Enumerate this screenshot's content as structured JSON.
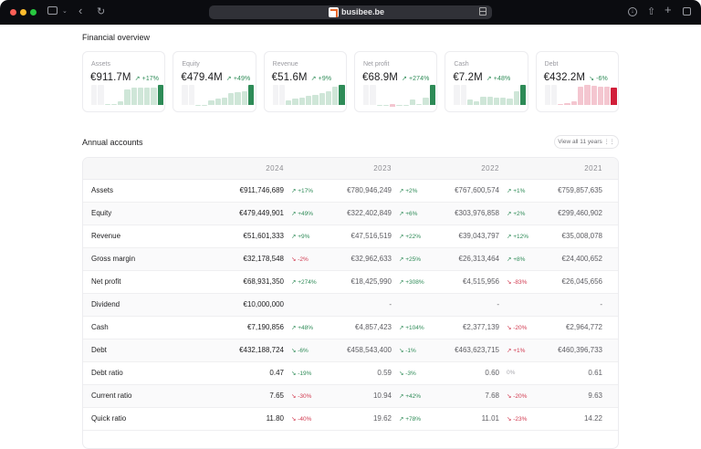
{
  "browser": {
    "url": "busibee.be",
    "icons": [
      "sidebar-icon",
      "chevron-down-icon",
      "back-icon",
      "reload-icon",
      "reader-icon",
      "download-icon",
      "share-icon",
      "new-tab-icon",
      "tabs-icon"
    ]
  },
  "overview": {
    "title": "Financial overview",
    "cards": [
      {
        "label": "Assets",
        "value": "€911.7M",
        "change": "+17%",
        "trend": "up",
        "tone": "up",
        "color": "#2e8b57",
        "color_light": "#cfe6d8",
        "bars": [
          0.06,
          0.06,
          0.2,
          0.78,
          0.85,
          0.86,
          0.86,
          0.86,
          1.0
        ]
      },
      {
        "label": "Equity",
        "value": "€479.4M",
        "change": "+49%",
        "trend": "up",
        "tone": "up",
        "color": "#2e8b57",
        "color_light": "#cfe6d8",
        "bars": [
          0.0,
          0.0,
          0.25,
          0.33,
          0.35,
          0.6,
          0.63,
          0.66,
          1.0
        ]
      },
      {
        "label": "Revenue",
        "value": "€51.6M",
        "change": "+9%",
        "trend": "up",
        "tone": "up",
        "color": "#2e8b57",
        "color_light": "#cfe6d8",
        "bars": [
          0.25,
          0.3,
          0.38,
          0.45,
          0.52,
          0.58,
          0.68,
          0.9,
          1.0
        ]
      },
      {
        "label": "Net profit",
        "value": "€68.9M",
        "change": "+274%",
        "trend": "up",
        "tone": "up",
        "color": "#2e8b57",
        "color_light": "#cfe6d8",
        "bars": [
          0.02,
          0.02,
          -0.12,
          0.02,
          0.0,
          0.27,
          0.06,
          0.35,
          1.0
        ]
      },
      {
        "label": "Cash",
        "value": "€7.2M",
        "change": "+48%",
        "trend": "up",
        "tone": "up",
        "color": "#2e8b57",
        "color_light": "#cfe6d8",
        "bars": [
          0.28,
          0.2,
          0.4,
          0.4,
          0.38,
          0.37,
          0.33,
          0.67,
          1.0
        ]
      },
      {
        "label": "Debt",
        "value": "€432.2M",
        "change": "-6%",
        "trend": "down",
        "tone": "up",
        "color": "#d11f3a",
        "color_light": "#f4c6d0",
        "bars": [
          0.05,
          0.1,
          0.17,
          0.93,
          1.0,
          0.95,
          0.93,
          0.93,
          0.87
        ]
      }
    ]
  },
  "annual": {
    "title": "Annual accounts",
    "view_all": "View all 11 years",
    "years": [
      "2024",
      "2023",
      "2022",
      "2021"
    ],
    "rows": [
      {
        "label": "Assets",
        "values": [
          "€911,746,689",
          "€780,946,249",
          "€767,600,574",
          "€759,857,635"
        ],
        "changes": [
          {
            "text": "+17%",
            "trend": "up",
            "tone": "up"
          },
          {
            "text": "+2%",
            "trend": "up",
            "tone": "up"
          },
          {
            "text": "+1%",
            "trend": "up",
            "tone": "up"
          }
        ]
      },
      {
        "label": "Equity",
        "values": [
          "€479,449,901",
          "€322,402,849",
          "€303,976,858",
          "€299,460,902"
        ],
        "changes": [
          {
            "text": "+49%",
            "trend": "up",
            "tone": "up"
          },
          {
            "text": "+6%",
            "trend": "up",
            "tone": "up"
          },
          {
            "text": "+2%",
            "trend": "up",
            "tone": "up"
          }
        ]
      },
      {
        "label": "Revenue",
        "values": [
          "€51,601,333",
          "€47,516,519",
          "€39,043,797",
          "€35,008,078"
        ],
        "changes": [
          {
            "text": "+9%",
            "trend": "up",
            "tone": "up"
          },
          {
            "text": "+22%",
            "trend": "up",
            "tone": "up"
          },
          {
            "text": "+12%",
            "trend": "up",
            "tone": "up"
          }
        ]
      },
      {
        "label": "Gross margin",
        "values": [
          "€32,178,548",
          "€32,962,633",
          "€26,313,464",
          "€24,400,652"
        ],
        "changes": [
          {
            "text": "-2%",
            "trend": "down",
            "tone": "down"
          },
          {
            "text": "+25%",
            "trend": "up",
            "tone": "up"
          },
          {
            "text": "+8%",
            "trend": "up",
            "tone": "up"
          }
        ]
      },
      {
        "label": "Net profit",
        "values": [
          "€68,931,350",
          "€18,425,990",
          "€4,515,956",
          "€26,045,656"
        ],
        "changes": [
          {
            "text": "+274%",
            "trend": "up",
            "tone": "up"
          },
          {
            "text": "+308%",
            "trend": "up",
            "tone": "up"
          },
          {
            "text": "-83%",
            "trend": "down",
            "tone": "down"
          }
        ]
      },
      {
        "label": "Dividend",
        "values": [
          "€10,000,000",
          "-",
          "-",
          "-"
        ],
        "changes": [
          null,
          null,
          null
        ]
      },
      {
        "label": "Cash",
        "values": [
          "€7,190,856",
          "€4,857,423",
          "€2,377,139",
          "€2,964,772"
        ],
        "changes": [
          {
            "text": "+48%",
            "trend": "up",
            "tone": "up"
          },
          {
            "text": "+104%",
            "trend": "up",
            "tone": "up"
          },
          {
            "text": "-20%",
            "trend": "down",
            "tone": "down"
          }
        ]
      },
      {
        "label": "Debt",
        "values": [
          "€432,188,724",
          "€458,543,400",
          "€463,623,715",
          "€460,396,733"
        ],
        "changes": [
          {
            "text": "-6%",
            "trend": "down",
            "tone": "up"
          },
          {
            "text": "-1%",
            "trend": "down",
            "tone": "up"
          },
          {
            "text": "+1%",
            "trend": "up",
            "tone": "down"
          }
        ]
      },
      {
        "label": "Debt ratio",
        "values": [
          "0.47",
          "0.59",
          "0.60",
          "0.61"
        ],
        "changes": [
          {
            "text": "-19%",
            "trend": "down",
            "tone": "up"
          },
          {
            "text": "-3%",
            "trend": "down",
            "tone": "up"
          },
          {
            "text": "0%",
            "trend": "none",
            "tone": "neutral"
          }
        ]
      },
      {
        "label": "Current ratio",
        "values": [
          "7.65",
          "10.94",
          "7.68",
          "9.63"
        ],
        "changes": [
          {
            "text": "-30%",
            "trend": "down",
            "tone": "down"
          },
          {
            "text": "+42%",
            "trend": "up",
            "tone": "up"
          },
          {
            "text": "-20%",
            "trend": "down",
            "tone": "down"
          }
        ]
      },
      {
        "label": "Quick ratio",
        "values": [
          "11.80",
          "19.62",
          "11.01",
          "14.22"
        ],
        "changes": [
          {
            "text": "-40%",
            "trend": "down",
            "tone": "down"
          },
          {
            "text": "+78%",
            "trend": "up",
            "tone": "up"
          },
          {
            "text": "-23%",
            "trend": "down",
            "tone": "down"
          }
        ]
      }
    ]
  }
}
